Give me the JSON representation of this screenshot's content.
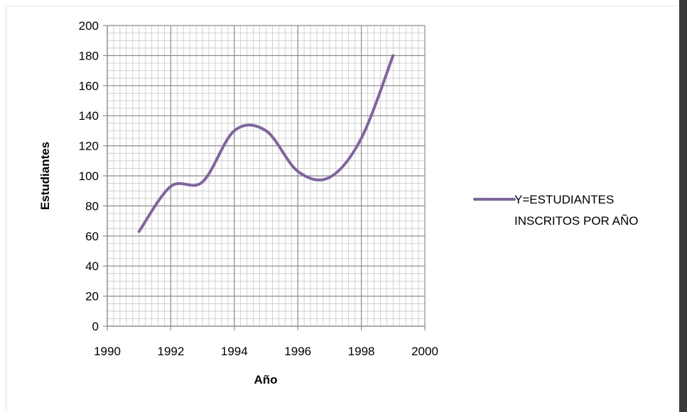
{
  "chart_data": {
    "type": "line",
    "title": "",
    "xlabel": "Año",
    "ylabel": "Estudiantes",
    "xlim": [
      1990,
      2000
    ],
    "ylim": [
      0,
      200
    ],
    "xticks": [
      "1990",
      "1992",
      "1994",
      "1996",
      "1998",
      "2000"
    ],
    "yticks": [
      "0",
      "20",
      "40",
      "60",
      "80",
      "100",
      "120",
      "140",
      "160",
      "180",
      "200"
    ],
    "grid": true,
    "legend_position": "right",
    "smooth": true,
    "series": [
      {
        "name": "Y=ESTUDIANTES INSCRITOS POR AÑO",
        "color": "#8064a2",
        "x": [
          1991,
          1992,
          1993,
          1994,
          1995,
          1996,
          1997,
          1998,
          1999
        ],
        "y": [
          63,
          93,
          96,
          130,
          130,
          103,
          99,
          125,
          180
        ]
      }
    ]
  },
  "colors": {
    "major_grid": "#8c8c8c",
    "minor_grid": "#c8c8c8",
    "axis": "#8c8c8c"
  }
}
